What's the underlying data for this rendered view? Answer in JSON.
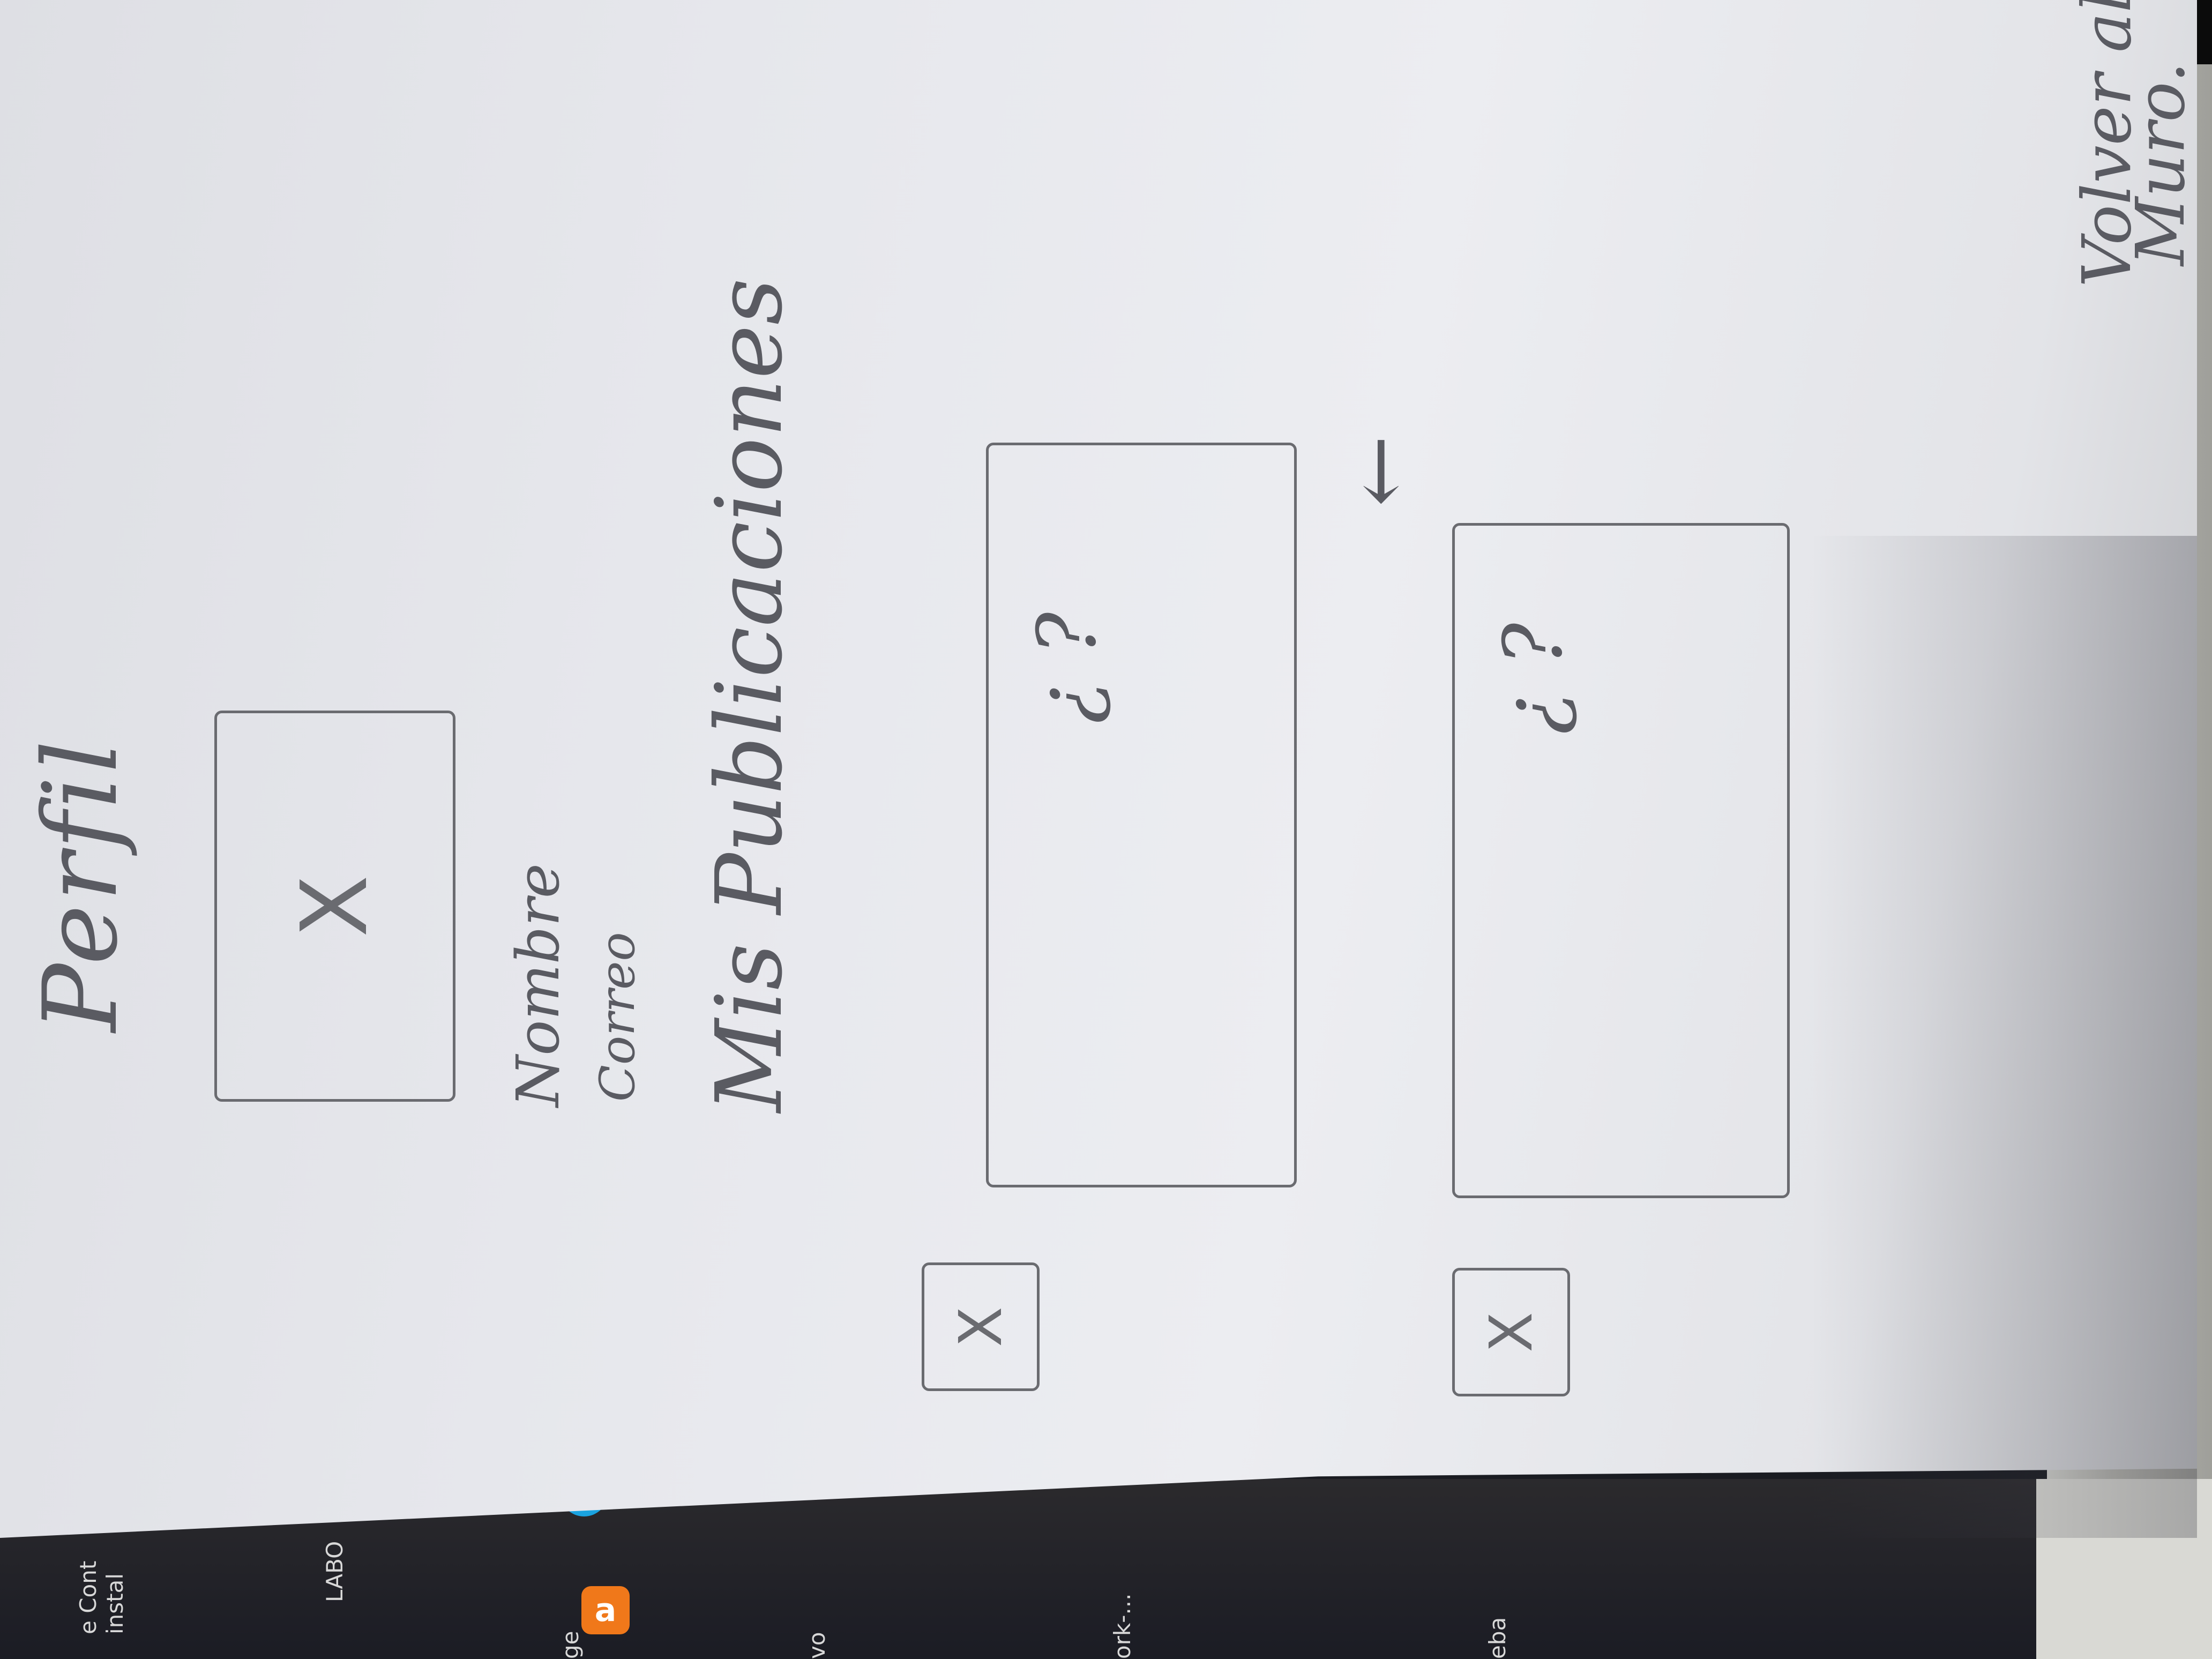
{
  "sketch": {
    "header": {
      "title": "Perfil",
      "back_arrow_icon": "left-arrow-icon",
      "back_label_line1": "Volver al",
      "back_label_line2": "Muro."
    },
    "profile": {
      "photo_placeholder": "X",
      "name_label": "Nombre",
      "email_label": "Correo"
    },
    "posts_section": {
      "heading": "Mis Publicaciones",
      "posts": [
        {
          "avatar_placeholder": "X",
          "content": "¿ ?"
        },
        {
          "avatar_placeholder": "X",
          "content": "¿ ?"
        }
      ]
    }
  },
  "background_taskbar": {
    "texts": [
      "e Cont",
      "instal",
      "LABO",
      "ge",
      "vo",
      "ork-...",
      "eba"
    ]
  },
  "colors": {
    "paper": "#e6e7ec",
    "pencil": "#5a5b62",
    "desk": "#1b1c24"
  }
}
